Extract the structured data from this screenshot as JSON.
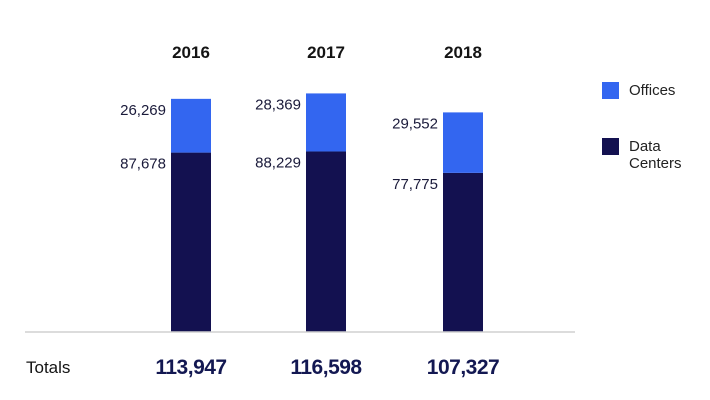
{
  "chart_data": {
    "type": "bar",
    "stacked": true,
    "categories": [
      "2016",
      "2017",
      "2018"
    ],
    "series": [
      {
        "name": "Data Centers",
        "values": [
          87678,
          88229,
          77775
        ],
        "color": "#131150"
      },
      {
        "name": "Offices",
        "values": [
          26269,
          28369,
          29552
        ],
        "color": "#3366f0"
      }
    ],
    "value_labels": {
      "Data Centers": [
        "87,678",
        "88,229",
        "77,775"
      ],
      "Offices": [
        "26,269",
        "28,369",
        "29,552"
      ]
    },
    "totals_caption": "Totals",
    "totals": [
      "113,947",
      "116,598",
      "107,327"
    ],
    "legend": [
      {
        "label": "Offices",
        "color": "#3366f0"
      },
      {
        "label_lines": [
          "Data",
          "Centers"
        ],
        "color": "#131150"
      }
    ],
    "legend_position": "right",
    "ylim": [
      0,
      130000
    ],
    "grid": false,
    "baseline_color": "#d0d0d0"
  }
}
